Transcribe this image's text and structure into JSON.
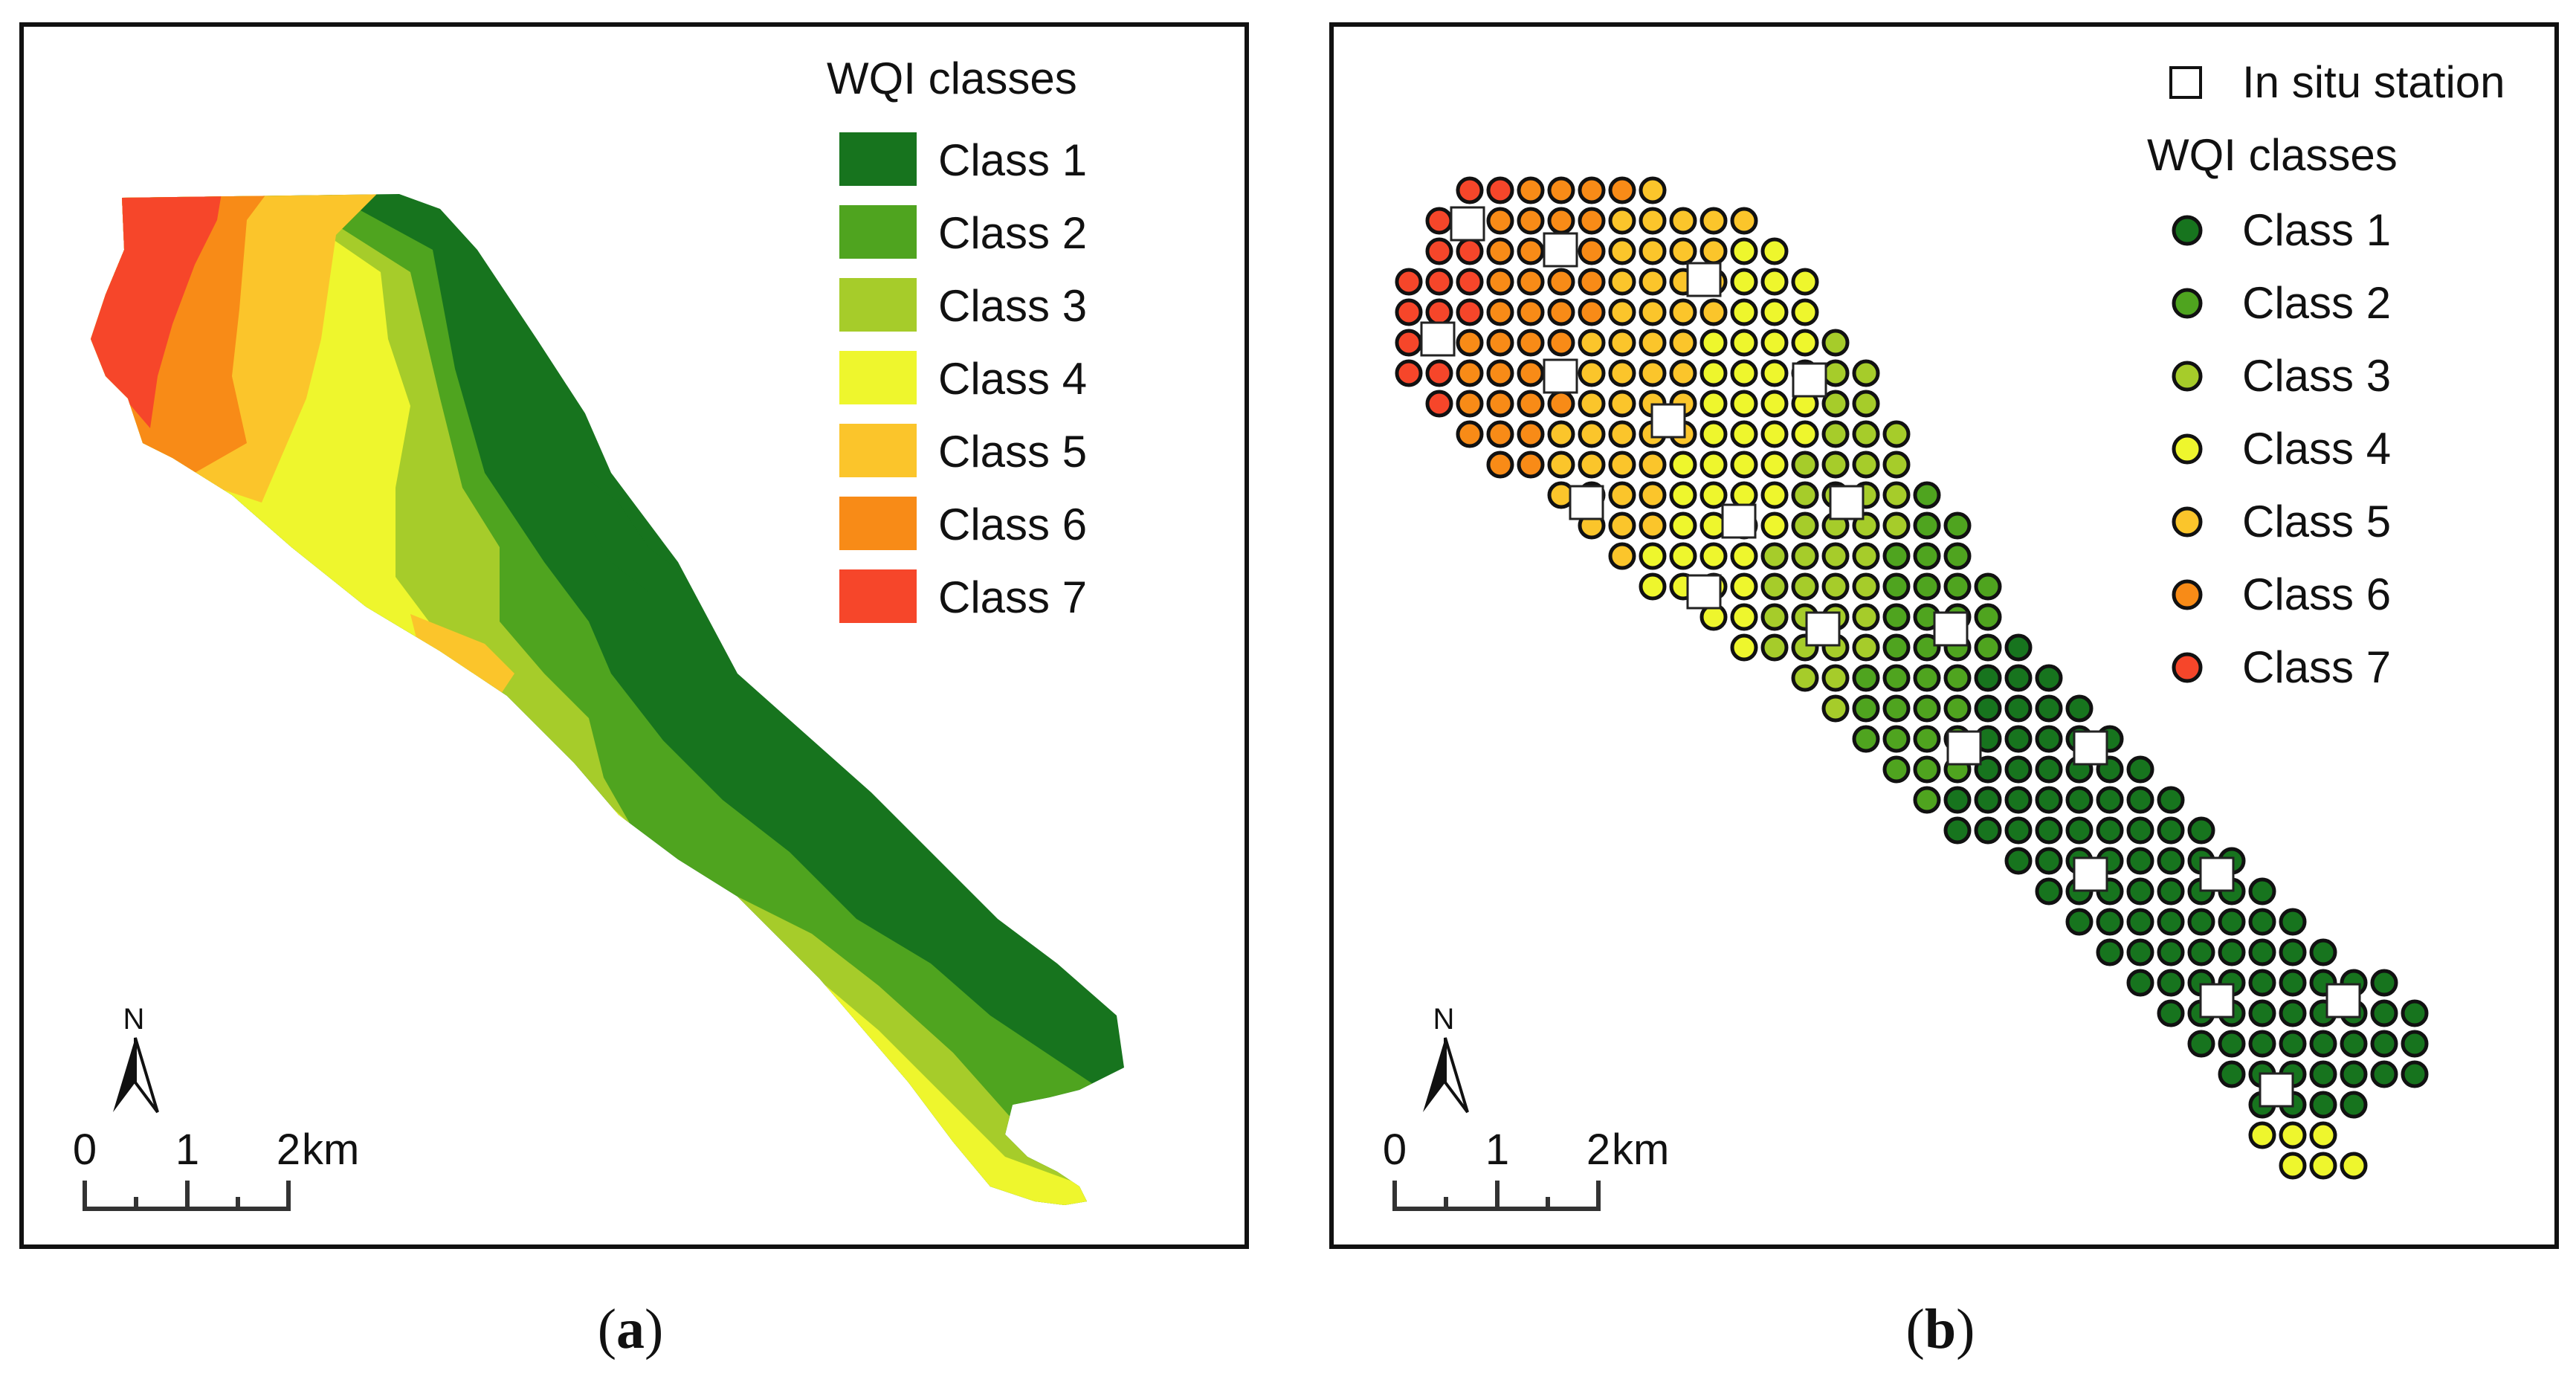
{
  "panel_a": {
    "caption": {
      "open": "(",
      "letter": "a",
      "close": ")"
    },
    "legend_title": "WQI classes",
    "legend": [
      {
        "label": "Class 1",
        "color": "#17741e"
      },
      {
        "label": "Class 2",
        "color": "#4fa41f"
      },
      {
        "label": "Class 3",
        "color": "#a6cc2a"
      },
      {
        "label": "Class 4",
        "color": "#eef62d"
      },
      {
        "label": "Class 5",
        "color": "#fbc52b"
      },
      {
        "label": "Class 6",
        "color": "#f88b17"
      },
      {
        "label": "Class 7",
        "color": "#f6462a"
      }
    ],
    "scale": {
      "ticks": [
        "0",
        "1",
        "2"
      ],
      "unit": "km"
    },
    "north": "N"
  },
  "panel_b": {
    "caption": {
      "open": "(",
      "letter": "b",
      "close": ")"
    },
    "station_label": "In situ station",
    "legend_title": "WQI classes",
    "legend": [
      {
        "label": "Class 1",
        "color": "#17741e"
      },
      {
        "label": "Class 2",
        "color": "#4fa41f"
      },
      {
        "label": "Class 3",
        "color": "#a6cc2a"
      },
      {
        "label": "Class 4",
        "color": "#eef62d"
      },
      {
        "label": "Class 5",
        "color": "#fbc52b"
      },
      {
        "label": "Class 6",
        "color": "#f88b17"
      },
      {
        "label": "Class 7",
        "color": "#f6462a"
      }
    ],
    "scale": {
      "ticks": [
        "0",
        "1",
        "2"
      ],
      "unit": "km"
    },
    "north": "N"
  }
}
